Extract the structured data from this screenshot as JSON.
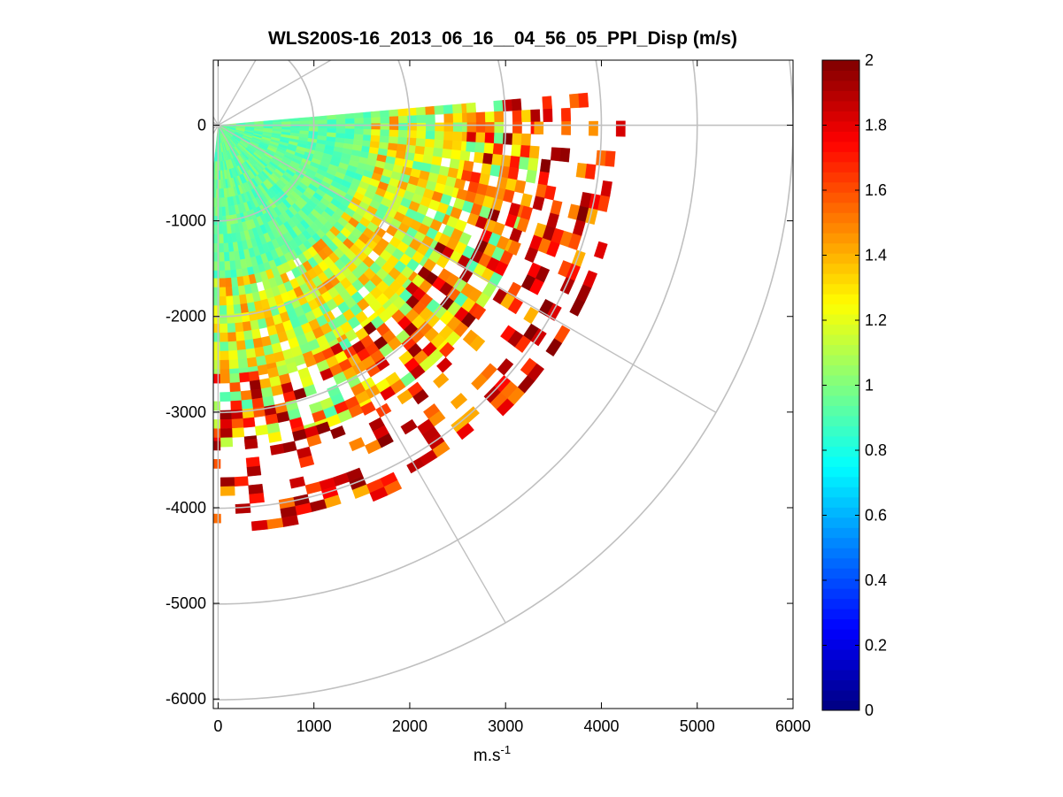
{
  "chart_data": {
    "type": "heatmap",
    "subtype": "polar PPI scan",
    "title": "WLS200S-16_2013_06_16__04_56_05_PPI_Disp (m/s)",
    "xlabel": "m.s",
    "xlabel_superscript": "-1",
    "ylabel": "",
    "xlim": [
      -50,
      6000
    ],
    "ylim": [
      -6100,
      680
    ],
    "x_ticks": [
      0,
      1000,
      2000,
      3000,
      4000,
      5000,
      6000
    ],
    "x_tick_labels": [
      "0",
      "1000",
      "2000",
      "3000",
      "4000",
      "5000",
      "6000"
    ],
    "y_ticks": [
      0,
      -1000,
      -2000,
      -3000,
      -4000,
      -5000,
      -6000
    ],
    "y_tick_labels": [
      "0",
      "-1000",
      "-2000",
      "-3000",
      "-4000",
      "-5000",
      "-6000"
    ],
    "polar_grid": {
      "origin": [
        0,
        0
      ],
      "range_rings": [
        1000,
        2000,
        3000,
        4000,
        5000,
        6000
      ],
      "azimuth_lines_deg": [
        0,
        30,
        60,
        90,
        120,
        150,
        180
      ],
      "grid_color": "#c0c0c0"
    },
    "scan": {
      "azimuth_from_deg": -5,
      "azimuth_to_deg": 95,
      "description": "angles measured clockwise from +x axis (east) toward south"
    },
    "sectors": [
      {
        "range_start": 0,
        "range_end": 1600,
        "value_range": [
          0.85,
          1.05
        ],
        "coverage": 1.0
      },
      {
        "range_start": 1600,
        "range_end": 2600,
        "value_range": [
          0.9,
          1.5
        ],
        "coverage": 0.95
      },
      {
        "range_start": 2600,
        "range_end": 3300,
        "value_range": [
          0.9,
          2.0
        ],
        "coverage": 0.8
      },
      {
        "range_start": 3300,
        "range_end": 4200,
        "value_range": [
          1.4,
          2.0
        ],
        "coverage": 0.35
      }
    ],
    "colorbar": {
      "colormap": "jet",
      "min": 0,
      "max": 2,
      "ticks": [
        0,
        0.2,
        0.4,
        0.6,
        0.8,
        1,
        1.2,
        1.4,
        1.6,
        1.8,
        2
      ],
      "tick_labels": [
        "0",
        "0.2",
        "0.4",
        "0.6",
        "0.8",
        "1",
        "1.2",
        "1.4",
        "1.6",
        "1.8",
        "2"
      ]
    }
  }
}
